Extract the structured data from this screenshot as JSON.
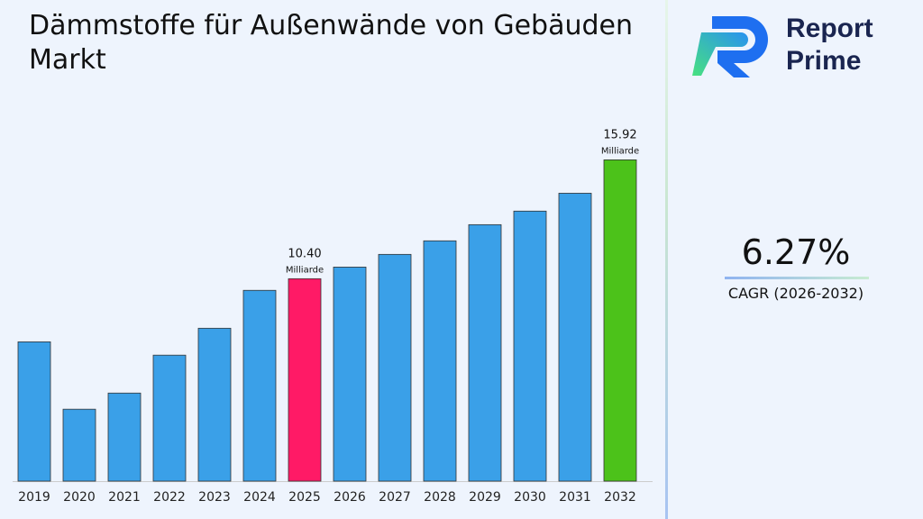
{
  "title": "Dämmstoffe für Außenwände von Gebäuden Markt",
  "logo": {
    "line1": "Report",
    "line2": "Prime"
  },
  "cagr": {
    "value": "6.27%",
    "label": "CAGR (2026-2032)"
  },
  "colors": {
    "default_bar": "#3aa0e8",
    "highlight_2025": "#ff1a66",
    "highlight_2032": "#4cc21a",
    "background": "#eef4fd"
  },
  "chart_data": {
    "type": "bar",
    "title": "Dämmstoffe für Außenwände von Gebäuden Markt",
    "categories": [
      "2019",
      "2020",
      "2021",
      "2022",
      "2023",
      "2024",
      "2025",
      "2026",
      "2027",
      "2028",
      "2029",
      "2030",
      "2031",
      "2032"
    ],
    "values": [
      7.47,
      4.34,
      5.09,
      6.85,
      8.1,
      9.86,
      10.4,
      10.94,
      11.53,
      12.16,
      12.91,
      13.54,
      14.37,
      15.92
    ],
    "unit": "Milliarde",
    "ylim": [
      1,
      17
    ],
    "grid": false,
    "data_labels": [
      {
        "category": "2025",
        "value": "10.40",
        "unit": "Milliarde"
      },
      {
        "category": "2032",
        "value": "15.92",
        "unit": "Milliarde"
      }
    ]
  }
}
